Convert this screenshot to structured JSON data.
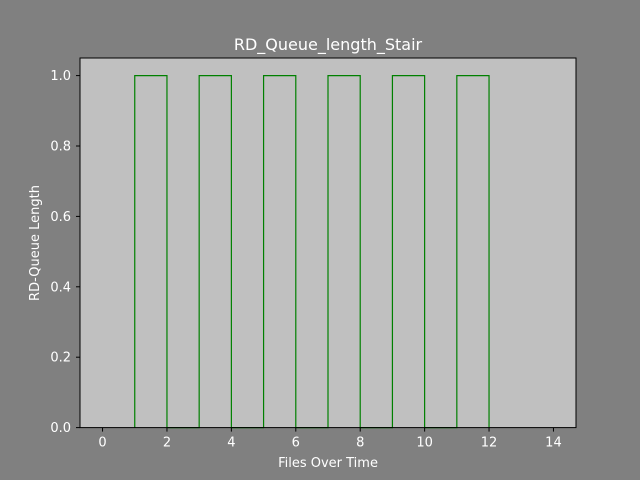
{
  "chart_data": {
    "type": "line",
    "style": "step",
    "title": "RD_Queue_length_Stair",
    "xlabel": "Files Over Time",
    "ylabel": "RD-Queue Length",
    "xlim": [
      -0.7,
      14.7
    ],
    "ylim": [
      0,
      1.05
    ],
    "x_ticks": [
      0,
      2,
      4,
      6,
      8,
      10,
      12,
      14
    ],
    "y_ticks": [
      0.0,
      0.2,
      0.4,
      0.6,
      0.8,
      1.0
    ],
    "x_tick_labels": [
      "0",
      "2",
      "4",
      "6",
      "8",
      "10",
      "12",
      "14"
    ],
    "y_tick_labels": [
      "0.0",
      "0.2",
      "0.4",
      "0.6",
      "0.8",
      "1.0"
    ],
    "grid": false,
    "series": [
      {
        "color": "#008000",
        "x": [
          1,
          1,
          2,
          2,
          3,
          3,
          4,
          4,
          5,
          5,
          6,
          6,
          7,
          7,
          8,
          8,
          9,
          9,
          10,
          10,
          11,
          11,
          12,
          12
        ],
        "y": [
          0,
          1,
          1,
          0,
          0,
          1,
          1,
          0,
          0,
          1,
          1,
          0,
          0,
          1,
          1,
          0,
          0,
          1,
          1,
          0,
          0,
          1,
          1,
          0
        ]
      }
    ],
    "colors": {
      "figure_background": "#808080",
      "plot_background": "#c0c0c0",
      "text": "#ffffff"
    }
  }
}
